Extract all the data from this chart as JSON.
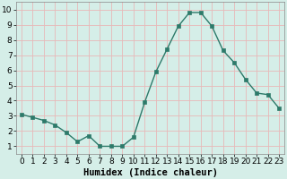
{
  "x": [
    0,
    1,
    2,
    3,
    4,
    5,
    6,
    7,
    8,
    9,
    10,
    11,
    12,
    13,
    14,
    15,
    16,
    17,
    18,
    19,
    20,
    21,
    22,
    23
  ],
  "y": [
    3.1,
    2.9,
    2.7,
    2.4,
    1.9,
    1.3,
    1.7,
    1.0,
    1.0,
    1.0,
    1.6,
    3.9,
    5.9,
    7.4,
    8.9,
    9.8,
    9.8,
    8.9,
    7.3,
    6.5,
    5.4,
    4.5,
    4.4,
    3.5
  ],
  "xlabel": "Humidex (Indice chaleur)",
  "ylim": [
    0.5,
    10.5
  ],
  "xlim": [
    -0.5,
    23.5
  ],
  "yticks": [
    1,
    2,
    3,
    4,
    5,
    6,
    7,
    8,
    9,
    10
  ],
  "xticks": [
    0,
    1,
    2,
    3,
    4,
    5,
    6,
    7,
    8,
    9,
    10,
    11,
    12,
    13,
    14,
    15,
    16,
    17,
    18,
    19,
    20,
    21,
    22,
    23
  ],
  "bg_color": "#d5eee8",
  "grid_color": "#e8b8b8",
  "line_color": "#2d7a6a",
  "marker_color": "#2d7a6a",
  "tick_fontsize": 6.5,
  "xlabel_fontsize": 7.5,
  "spine_color": "#888888"
}
